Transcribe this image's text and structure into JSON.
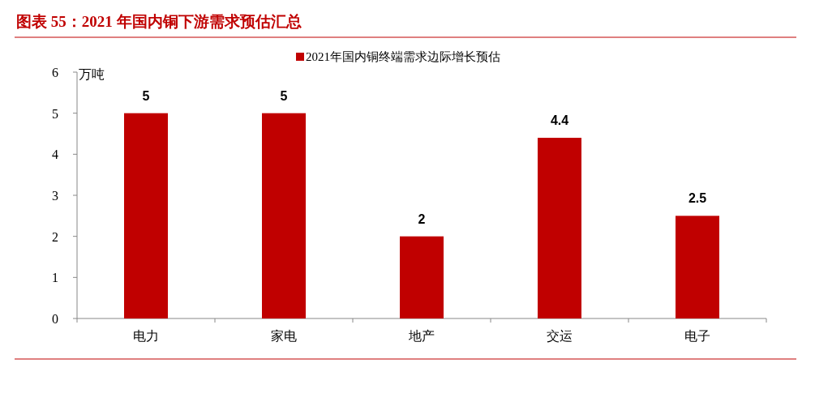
{
  "chart_data": {
    "type": "bar",
    "title": "图表 55：2021 年国内铜下游需求预估汇总",
    "ylabel": "万吨",
    "categories": [
      "电力",
      "家电",
      "地产",
      "交运",
      "电子"
    ],
    "series": [
      {
        "name": "2021年国内铜终端需求边际增长预估",
        "color": "#c00000",
        "values": [
          5,
          5,
          2,
          4.4,
          2.5
        ]
      }
    ],
    "ylim": [
      0,
      6
    ],
    "yticks": [
      0,
      1,
      2,
      3,
      4,
      5,
      6
    ],
    "data_labels": true,
    "legend": "top",
    "grid": false
  }
}
